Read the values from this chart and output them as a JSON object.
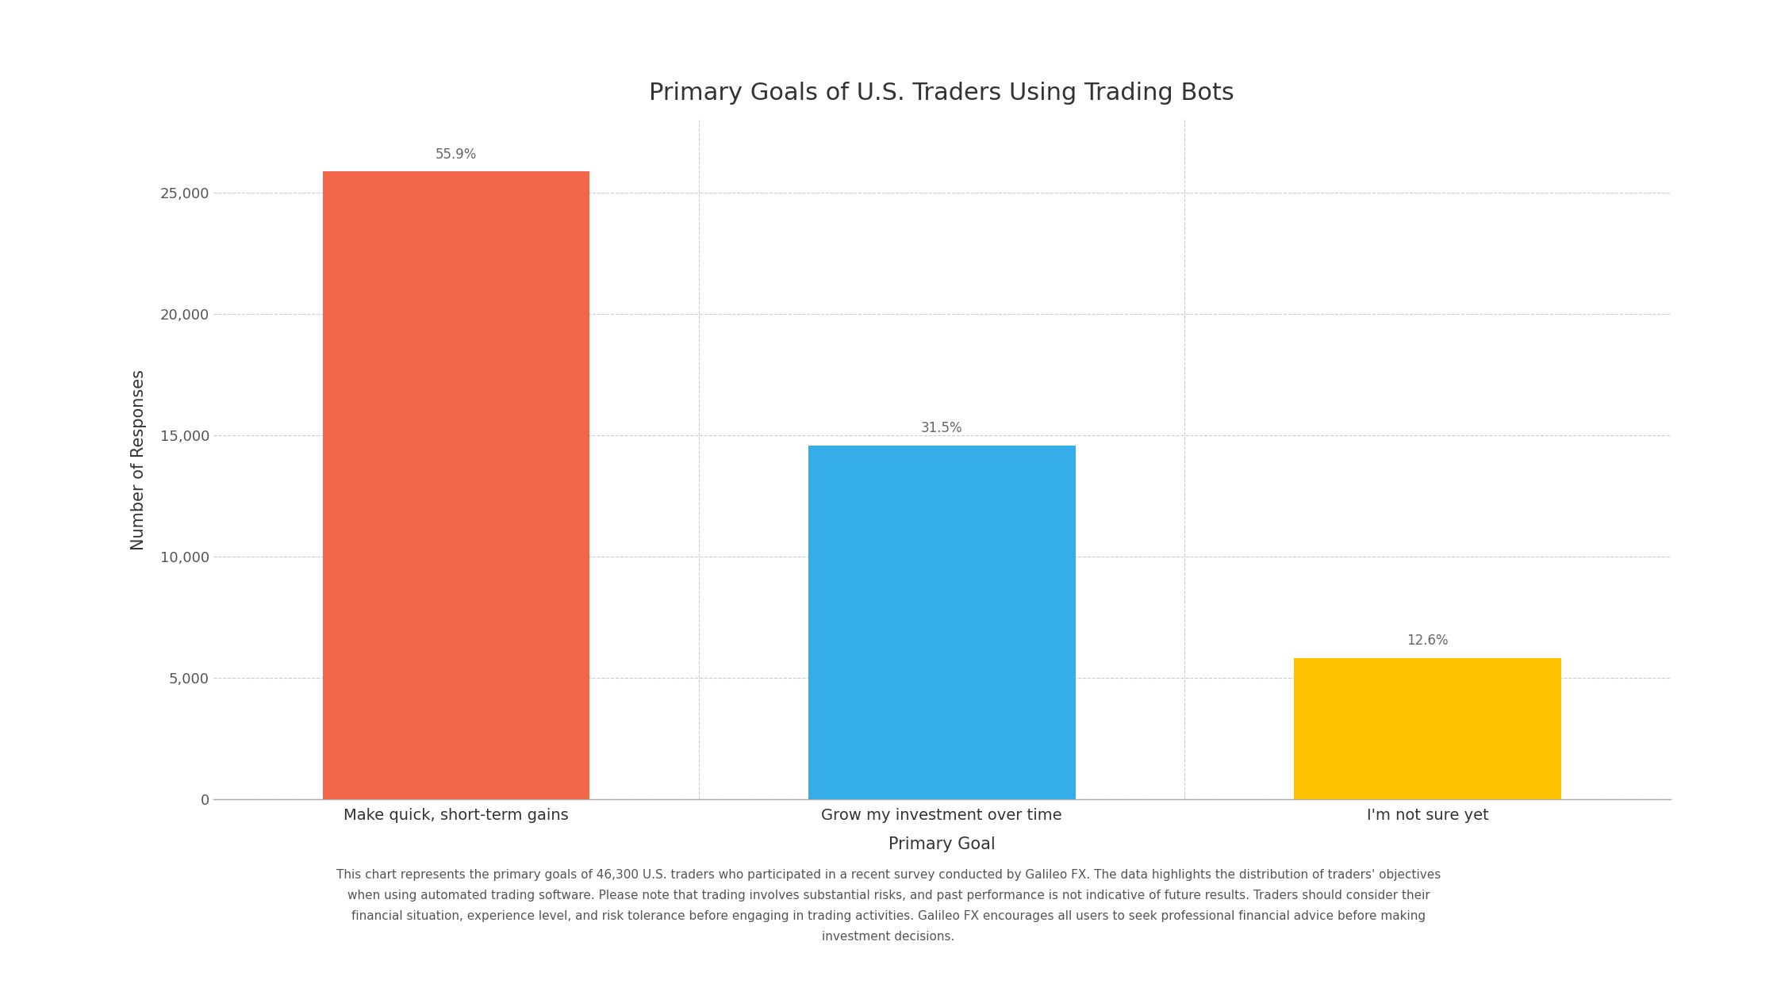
{
  "title": "Primary Goals of U.S. Traders Using Trading Bots",
  "categories": [
    "Make quick, short-term gains",
    "Grow my investment over time",
    "I'm not sure yet"
  ],
  "values": [
    25877,
    14585,
    5832
  ],
  "percentages": [
    "55.9%",
    "31.5%",
    "12.6%"
  ],
  "bar_colors": [
    "#F2674A",
    "#35ADE8",
    "#FFC200"
  ],
  "xlabel": "Primary Goal",
  "ylabel": "Number of Responses",
  "ylim": [
    0,
    28000
  ],
  "yticks": [
    0,
    5000,
    10000,
    15000,
    20000,
    25000
  ],
  "background_color": "#FFFFFF",
  "grid_color": "#CCCCCC",
  "footnote": "This chart represents the primary goals of 46,300 U.S. traders who participated in a recent survey conducted by Galileo FX. The data highlights the distribution of traders' objectives\nwhen using automated trading software. Please note that trading involves substantial risks, and past performance is not indicative of future results. Traders should consider their\nfinancial situation, experience level, and risk tolerance before engaging in trading activities. Galileo FX encourages all users to seek professional financial advice before making\ninvestment decisions.",
  "title_fontsize": 22,
  "label_fontsize": 14,
  "tick_fontsize": 13,
  "annot_fontsize": 12,
  "footnote_fontsize": 11,
  "bar_width": 0.55
}
